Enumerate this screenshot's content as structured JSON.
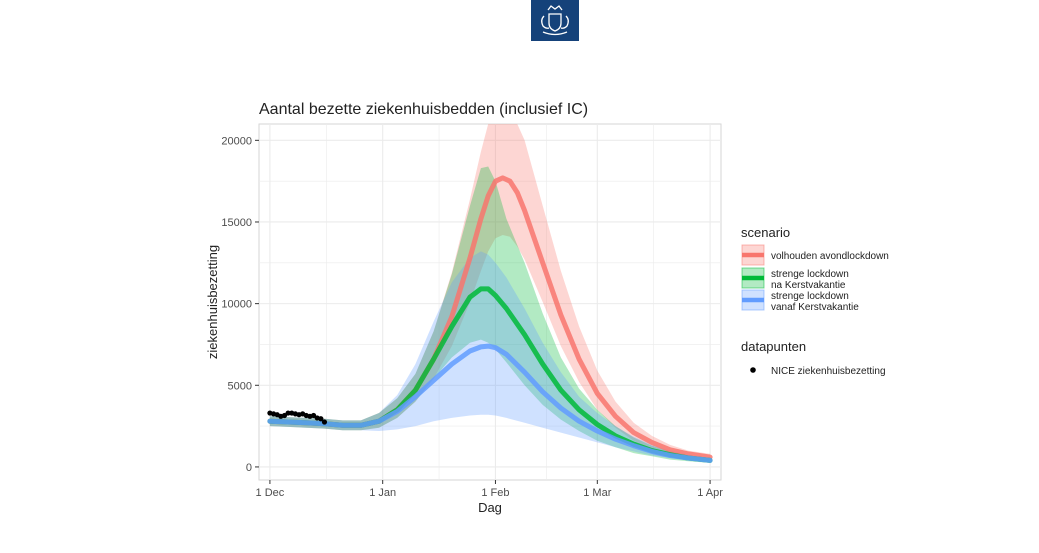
{
  "logo": {
    "name": "Rijksoverheid"
  },
  "colors": {
    "red": "#f8766d",
    "green": "#00ba38",
    "blue": "#619cff",
    "teal": "#3fb8b0",
    "grid": "#ebebeb",
    "panel_border": "#d6d6d6",
    "points": "#000000"
  },
  "chart_data": {
    "type": "line",
    "title": "Aantal bezette ziekenhuisbedden (inclusief IC)",
    "xlabel": "Dag",
    "ylabel": "ziekenhuisbezetting",
    "x_unit": "days since 1 Dec",
    "xlim": [
      -3,
      124
    ],
    "ylim": [
      -800,
      21000
    ],
    "x_ticks": [
      {
        "label": "1 Dec",
        "value": 0
      },
      {
        "label": "1 Jan",
        "value": 31
      },
      {
        "label": "1 Feb",
        "value": 62
      },
      {
        "label": "1 Mar",
        "value": 90
      },
      {
        "label": "1 Apr",
        "value": 121
      }
    ],
    "y_ticks": [
      {
        "label": "0",
        "value": 0
      },
      {
        "label": "5000",
        "value": 5000
      },
      {
        "label": "10000",
        "value": 10000
      },
      {
        "label": "15000",
        "value": 15000
      },
      {
        "label": "20000",
        "value": 20000
      }
    ],
    "series": [
      {
        "name": "volhouden avondlockdown",
        "color": "#f8766d",
        "x": [
          0,
          5,
          10,
          15,
          20,
          25,
          30,
          35,
          40,
          45,
          50,
          55,
          58,
          60,
          62,
          64,
          66,
          68,
          70,
          75,
          80,
          85,
          90,
          95,
          100,
          105,
          110,
          115,
          121
        ],
        "y": [
          2800,
          2750,
          2700,
          2650,
          2550,
          2550,
          2800,
          3500,
          4700,
          6600,
          9200,
          12800,
          15200,
          16600,
          17500,
          17700,
          17500,
          16800,
          15700,
          12500,
          9300,
          6600,
          4500,
          3100,
          2100,
          1500,
          1050,
          800,
          600
        ],
        "lower": [
          2500,
          2450,
          2400,
          2350,
          2250,
          2250,
          2400,
          3000,
          4000,
          5400,
          7400,
          10100,
          12000,
          13200,
          14000,
          14200,
          14100,
          13500,
          12700,
          10100,
          7400,
          5200,
          3500,
          2400,
          1600,
          1100,
          800,
          600,
          450
        ],
        "upper": [
          3100,
          3050,
          3000,
          2950,
          2850,
          2850,
          3300,
          4200,
          5700,
          8300,
          11900,
          16400,
          19300,
          21000,
          21000,
          21000,
          21000,
          21000,
          20000,
          16000,
          12000,
          8600,
          5900,
          4000,
          2700,
          1900,
          1350,
          1000,
          800
        ]
      },
      {
        "name": "strenge lockdown\n na Kerstvakantie",
        "color": "#00ba38",
        "x": [
          0,
          5,
          10,
          15,
          20,
          25,
          30,
          35,
          40,
          45,
          50,
          55,
          58,
          60,
          62,
          65,
          70,
          75,
          80,
          85,
          90,
          95,
          100,
          105,
          110,
          115,
          121
        ],
        "y": [
          2800,
          2750,
          2700,
          2650,
          2550,
          2550,
          2800,
          3500,
          4700,
          6600,
          8600,
          10400,
          10900,
          10900,
          10500,
          9700,
          8100,
          6300,
          4700,
          3500,
          2600,
          1900,
          1400,
          1000,
          750,
          550,
          400
        ],
        "lower": [
          2500,
          2450,
          2400,
          2350,
          2250,
          2250,
          2400,
          3000,
          4000,
          5400,
          6700,
          7600,
          7800,
          7600,
          7200,
          6400,
          5000,
          3800,
          2900,
          2200,
          1600,
          1200,
          850,
          650,
          450,
          350,
          250
        ],
        "upper": [
          3100,
          3050,
          3000,
          2950,
          2850,
          2850,
          3300,
          4200,
          5700,
          8300,
          11800,
          16000,
          18300,
          18400,
          17500,
          15200,
          12500,
          9400,
          6700,
          4800,
          3500,
          2500,
          1800,
          1300,
          950,
          700,
          500
        ]
      },
      {
        "name": "strenge lockdown\n vanaf Kerstvakantie",
        "color": "#619cff",
        "x": [
          0,
          5,
          10,
          15,
          20,
          25,
          30,
          35,
          40,
          45,
          50,
          55,
          58,
          60,
          62,
          65,
          70,
          75,
          80,
          85,
          90,
          95,
          100,
          105,
          110,
          115,
          121
        ],
        "y": [
          2800,
          2750,
          2700,
          2650,
          2550,
          2550,
          2800,
          3400,
          4300,
          5300,
          6300,
          7100,
          7350,
          7400,
          7300,
          6900,
          5800,
          4600,
          3600,
          2800,
          2200,
          1700,
          1300,
          950,
          700,
          550,
          400
        ],
        "lower": [
          2500,
          2450,
          2400,
          2350,
          2250,
          2250,
          2200,
          2300,
          2500,
          2800,
          3000,
          3150,
          3200,
          3200,
          3150,
          3000,
          2700,
          2400,
          2100,
          1800,
          1500,
          1200,
          950,
          700,
          550,
          400,
          300
        ],
        "upper": [
          3100,
          3050,
          3000,
          2950,
          2850,
          2850,
          3300,
          4400,
          6300,
          8900,
          11300,
          12800,
          13200,
          13000,
          12500,
          11600,
          9700,
          7600,
          5800,
          4300,
          3300,
          2500,
          1850,
          1350,
          1000,
          750,
          550
        ]
      }
    ],
    "datapunten": {
      "name": "NICE ziekenhuisbezetting",
      "x": [
        0,
        1,
        2,
        3,
        4,
        5,
        6,
        7,
        8,
        9,
        10,
        11,
        12,
        13,
        14,
        15
      ],
      "y": [
        3300,
        3250,
        3200,
        3100,
        3150,
        3300,
        3300,
        3250,
        3200,
        3250,
        3150,
        3100,
        3150,
        3000,
        2950,
        2750
      ]
    },
    "legend": {
      "scenario_title": "scenario",
      "scenario_entries": [
        {
          "label_lines": [
            "volhouden avondlockdown"
          ],
          "color": "#f8766d"
        },
        {
          "label_lines": [
            "strenge lockdown",
            " na Kerstvakantie"
          ],
          "color": "#00ba38"
        },
        {
          "label_lines": [
            "strenge lockdown",
            " vanaf Kerstvakantie"
          ],
          "color": "#619cff"
        }
      ],
      "data_title": "datapunten",
      "data_entry": "NICE ziekenhuisbezetting",
      "position": "right"
    },
    "grid": true
  }
}
